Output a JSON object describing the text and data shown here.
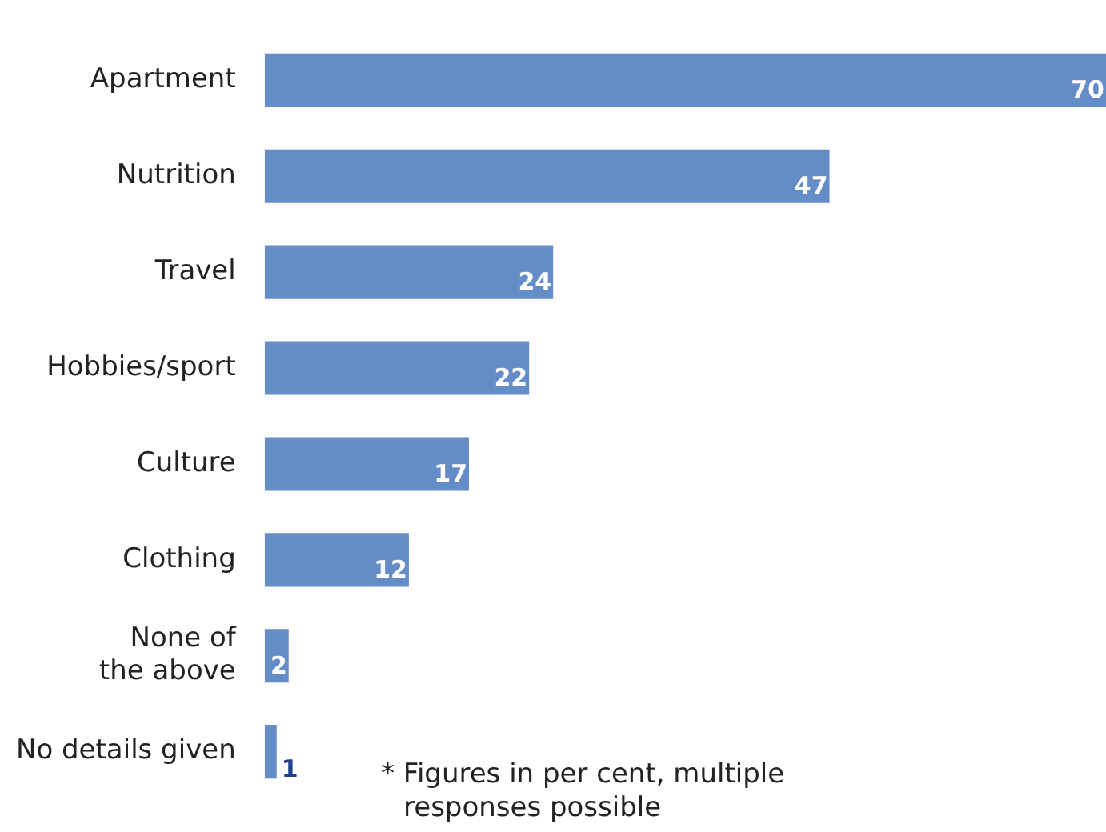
{
  "chart_data": {
    "type": "bar",
    "orientation": "horizontal",
    "categories": [
      "Apartment",
      "Nutrition",
      "Travel",
      "Hobbies/sport",
      "Culture",
      "Clothing",
      "None of the above",
      "No details given"
    ],
    "values": [
      70,
      47,
      24,
      22,
      17,
      12,
      2,
      1
    ],
    "color": "#648dc8",
    "data_labels": true,
    "legend": false,
    "tick_labels": "y",
    "annotations": [
      "* Figures in per cent, multiple responses possible"
    ]
  }
}
